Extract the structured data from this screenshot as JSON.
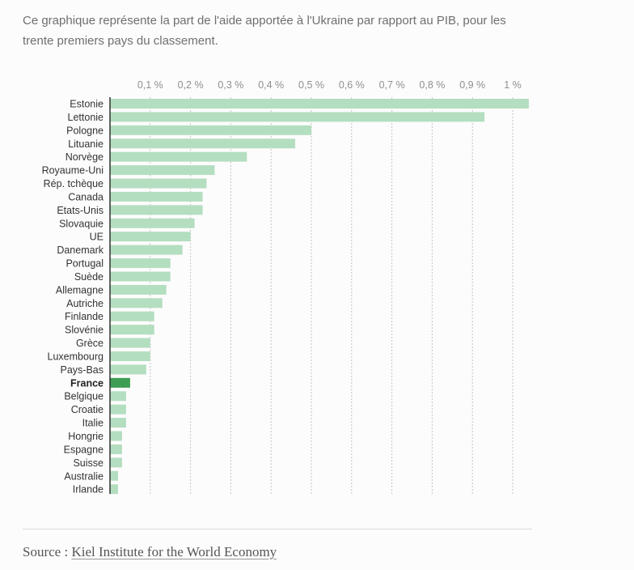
{
  "intro_text": "Ce graphique représente la part de l'aide apportée à l'Ukraine par rapport au PIB, pour les trente premiers pays du classement.",
  "source": {
    "label": "Source :",
    "link_text": "Kiel Institute for the World Economy"
  },
  "colors": {
    "bar": "#b4dec0",
    "highlight": "#3d9e54",
    "axis": "#333333",
    "grid": "#c4c4c4"
  },
  "chart_data": {
    "type": "bar",
    "orientation": "horizontal",
    "title": "",
    "xlabel": "",
    "ylabel": "",
    "xlim": [
      0,
      1.04
    ],
    "ticks": [
      0.1,
      0.2,
      0.3,
      0.4,
      0.5,
      0.6,
      0.7,
      0.8,
      0.9,
      1.0
    ],
    "tick_labels": [
      "0,1 %",
      "0,2 %",
      "0,3 %",
      "0,4 %",
      "0,5 %",
      "0,6 %",
      "0,7 %",
      "0,8 %",
      "0,9 %",
      "1 %"
    ],
    "grid": true,
    "highlight": "France",
    "categories": [
      "Estonie",
      "Lettonie",
      "Pologne",
      "Lituanie",
      "Norvège",
      "Royaume-Uni",
      "Rép. tchèque",
      "Canada",
      "Etats-Unis",
      "Slovaquie",
      "UE",
      "Danemark",
      "Portugal",
      "Suède",
      "Allemagne",
      "Autriche",
      "Finlande",
      "Slovénie",
      "Grèce",
      "Luxembourg",
      "Pays-Bas",
      "France",
      "Belgique",
      "Croatie",
      "Italie",
      "Hongrie",
      "Espagne",
      "Suisse",
      "Australie",
      "Irlande"
    ],
    "values": [
      1.04,
      0.93,
      0.5,
      0.46,
      0.34,
      0.26,
      0.24,
      0.23,
      0.23,
      0.21,
      0.2,
      0.18,
      0.15,
      0.15,
      0.14,
      0.13,
      0.11,
      0.11,
      0.1,
      0.1,
      0.09,
      0.05,
      0.04,
      0.04,
      0.04,
      0.03,
      0.03,
      0.03,
      0.02,
      0.02
    ]
  }
}
